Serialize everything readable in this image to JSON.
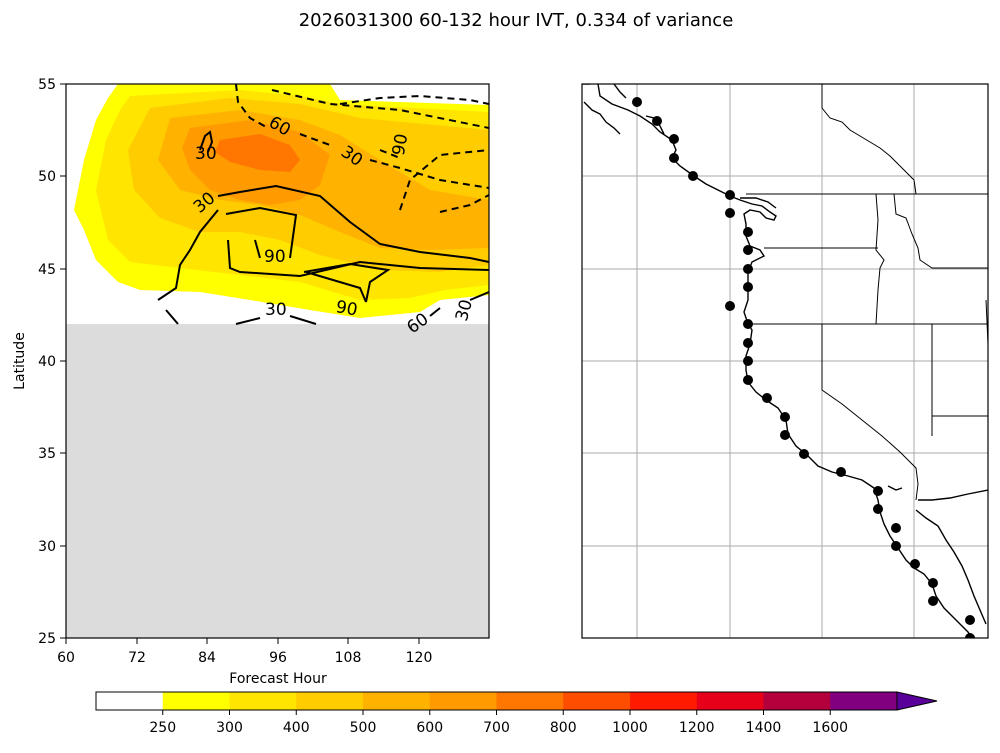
{
  "title": "2026031300 60-132 hour IVT, 0.334 of variance",
  "chart_data": [
    {
      "type": "contour",
      "title": "2026031300 60-132 hour IVT, 0.334 of variance",
      "xlabel": "Forecast Hour",
      "ylabel": "Latitude",
      "xlim": [
        60,
        132
      ],
      "ylim": [
        25,
        55
      ],
      "x_ticks": [
        "60",
        "72",
        "84",
        "96",
        "108",
        "120"
      ],
      "y_ticks": [
        "25",
        "30",
        "35",
        "40",
        "45",
        "50",
        "55"
      ],
      "masked_below_latitude": 42,
      "filled_levels_note": "Hovmoller of IVT (kg/m/s) filled contours",
      "contour_labels": [
        "30",
        "30",
        "60",
        "30",
        "90",
        "90",
        "90",
        "30",
        "60",
        "30"
      ],
      "contour_line_styles": {
        "positive": "solid",
        "negative": "dashed"
      }
    },
    {
      "type": "map",
      "region": "US West Coast",
      "markers": "coastal sample points",
      "marker_count": 33
    }
  ],
  "colorbar": {
    "levels": [
      "250",
      "300",
      "400",
      "500",
      "600",
      "700",
      "800",
      "1000",
      "1200",
      "1400",
      "1600"
    ],
    "colors": [
      "#ffffff",
      "#ffff00",
      "#ffe500",
      "#ffcc00",
      "#ffb300",
      "#ff9a00",
      "#ff7700",
      "#ff4d00",
      "#ff1a00",
      "#e6001a",
      "#b3003d",
      "#800080",
      "#5a009a"
    ],
    "extend": "max"
  }
}
